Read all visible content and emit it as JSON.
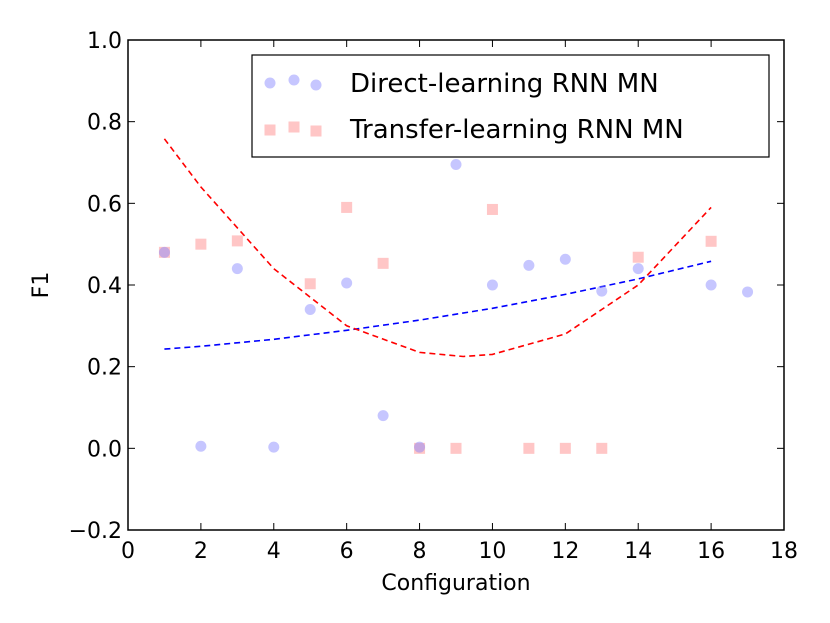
{
  "chart_data": {
    "type": "scatter",
    "title": "",
    "xlabel": "Configuration",
    "ylabel": "F1",
    "xlim": [
      0,
      18
    ],
    "ylim": [
      -0.2,
      1.0
    ],
    "xticks": [
      0,
      2,
      4,
      6,
      8,
      10,
      12,
      14,
      16,
      18
    ],
    "yticks": [
      -0.2,
      0.0,
      0.2,
      0.4,
      0.6,
      0.8,
      1.0
    ],
    "xtick_labels": [
      "0",
      "2",
      "4",
      "6",
      "8",
      "10",
      "12",
      "14",
      "16",
      "18"
    ],
    "ytick_labels": [
      "−0.2",
      "0.0",
      "0.2",
      "0.4",
      "0.6",
      "0.8",
      "1.0"
    ],
    "grid": false,
    "legend_position": "top-right",
    "series": [
      {
        "name": "Direct-learning RNN MN",
        "marker": "circle",
        "color": "#8080ff",
        "points": [
          [
            1,
            0.48
          ],
          [
            2,
            0.005
          ],
          [
            3,
            0.44
          ],
          [
            4,
            0.003
          ],
          [
            5,
            0.34
          ],
          [
            6,
            0.405
          ],
          [
            7,
            0.08
          ],
          [
            8,
            0.003
          ],
          [
            9,
            0.695
          ],
          [
            10,
            0.4
          ],
          [
            11,
            0.448
          ],
          [
            12,
            0.463
          ],
          [
            13,
            0.385
          ],
          [
            14,
            0.44
          ],
          [
            16,
            0.4
          ],
          [
            17,
            0.383
          ]
        ]
      },
      {
        "name": "Transfer-learning RNN MN",
        "marker": "square",
        "color": "#ff8080",
        "points": [
          [
            1,
            0.48
          ],
          [
            2,
            0.5
          ],
          [
            3,
            0.508
          ],
          [
            5,
            0.403
          ],
          [
            6,
            0.59
          ],
          [
            7,
            0.453
          ],
          [
            8,
            0.0
          ],
          [
            9,
            0.0
          ],
          [
            10,
            0.585
          ],
          [
            11,
            0.0
          ],
          [
            12,
            0.0
          ],
          [
            13,
            0.0
          ],
          [
            14,
            0.468
          ],
          [
            16,
            0.507
          ]
        ]
      }
    ],
    "trendlines": [
      {
        "series": "Direct-learning RNN MN",
        "style": "dashed",
        "color": "#0000ff",
        "x_range": [
          1,
          16
        ],
        "points": [
          [
            1,
            0.243
          ],
          [
            2,
            0.25
          ],
          [
            4,
            0.267
          ],
          [
            6,
            0.289
          ],
          [
            8,
            0.314
          ],
          [
            10,
            0.343
          ],
          [
            12,
            0.377
          ],
          [
            14,
            0.415
          ],
          [
            16,
            0.458
          ]
        ]
      },
      {
        "series": "Transfer-learning RNN MN",
        "style": "dashed",
        "color": "#ff0000",
        "x_range": [
          1,
          16
        ],
        "points": [
          [
            1,
            0.758
          ],
          [
            2,
            0.64
          ],
          [
            4,
            0.44
          ],
          [
            6,
            0.3
          ],
          [
            8,
            0.235
          ],
          [
            9.2,
            0.225
          ],
          [
            10,
            0.23
          ],
          [
            12,
            0.28
          ],
          [
            14,
            0.4
          ],
          [
            16,
            0.59
          ]
        ]
      }
    ]
  }
}
